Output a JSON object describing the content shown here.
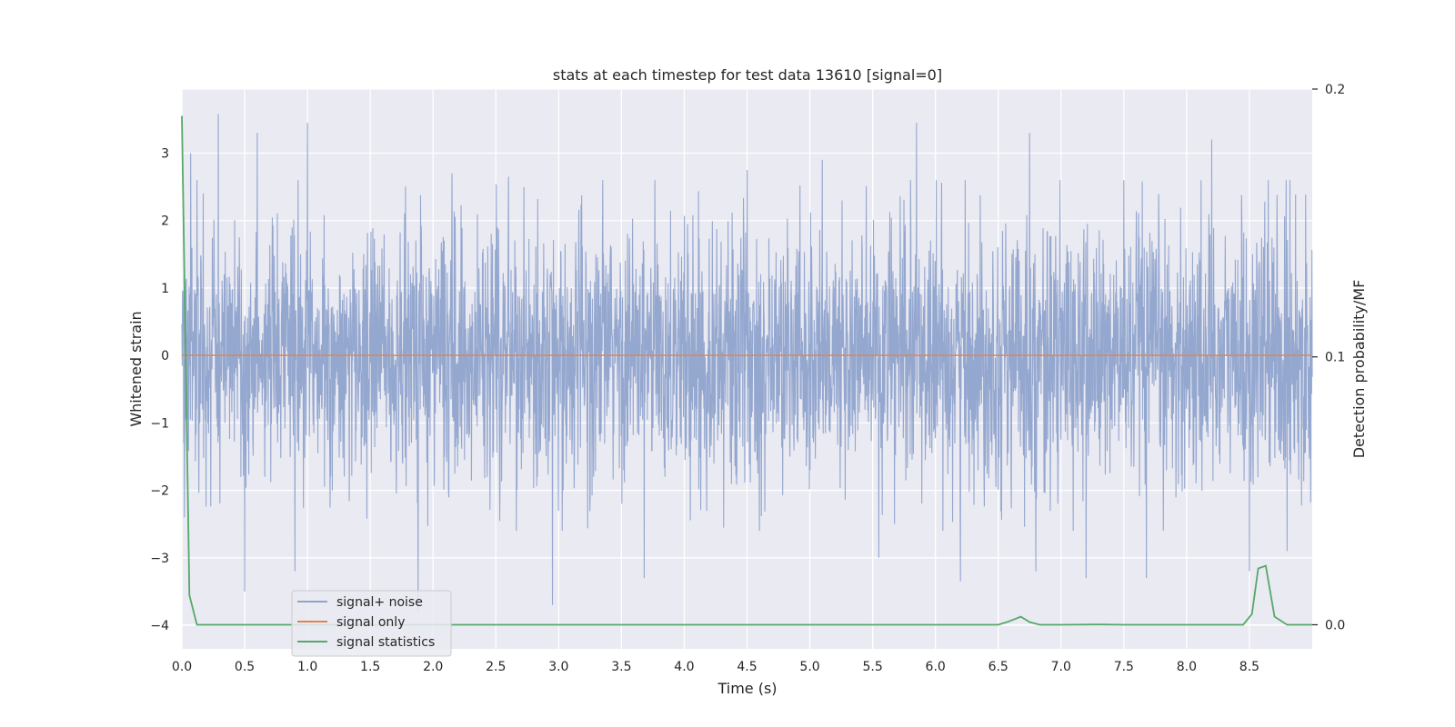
{
  "chart_data": {
    "type": "line",
    "title": "stats at each timestep for test data 13610 [signal=0]",
    "xlabel": "Time (s)",
    "ylabel": "Whitened strain",
    "y2label": "Detection probability/MF",
    "xlim": [
      0.0,
      9.0
    ],
    "ylim": [
      -4.35,
      3.95
    ],
    "y2lim": [
      -0.009,
      0.2
    ],
    "x_ticks": [
      "0.0",
      "0.5",
      "1.0",
      "1.5",
      "2.0",
      "2.5",
      "3.0",
      "3.5",
      "4.0",
      "4.5",
      "5.0",
      "5.5",
      "6.0",
      "6.5",
      "7.0",
      "7.5",
      "8.0",
      "8.5"
    ],
    "y_ticks": [
      "3",
      "2",
      "1",
      "0",
      "−1",
      "−2",
      "−3",
      "−4"
    ],
    "y2_ticks": [
      "0.2",
      "0.1",
      "0.0"
    ],
    "grid": true,
    "legend_position": "lower-left",
    "colors": {
      "noise": "#8fa3cc",
      "signal": "#dd8452",
      "stats": "#55a868",
      "background": "#eaeaf2"
    },
    "series": [
      {
        "name": "signal+ noise",
        "axis": "left",
        "description_samples": "noisy whitened strain, roughly ±2.5 with peaks to ±3.5",
        "peaks_max": [
          [
            0.07,
            3.0
          ],
          [
            0.29,
            3.58
          ],
          [
            0.6,
            3.3
          ],
          [
            1.0,
            3.45
          ],
          [
            2.15,
            2.7
          ],
          [
            2.6,
            2.65
          ],
          [
            3.35,
            2.6
          ],
          [
            4.5,
            2.75
          ],
          [
            5.1,
            2.9
          ],
          [
            5.85,
            3.45
          ],
          [
            6.75,
            3.3
          ],
          [
            7.5,
            2.6
          ],
          [
            8.2,
            3.2
          ],
          [
            8.65,
            2.6
          ]
        ],
        "peaks_min": [
          [
            0.02,
            -2.4
          ],
          [
            0.5,
            -3.5
          ],
          [
            0.9,
            -3.2
          ],
          [
            1.88,
            -3.8
          ],
          [
            2.95,
            -3.7
          ],
          [
            3.68,
            -3.3
          ],
          [
            5.55,
            -3.0
          ],
          [
            6.2,
            -3.35
          ],
          [
            6.8,
            -3.2
          ],
          [
            7.2,
            -3.3
          ],
          [
            7.68,
            -3.3
          ],
          [
            8.5,
            -3.2
          ],
          [
            8.8,
            -2.9
          ]
        ]
      },
      {
        "name": "signal only",
        "axis": "left",
        "x": [
          0.0,
          9.0
        ],
        "y": [
          0.0,
          0.0
        ]
      },
      {
        "name": "signal statistics",
        "axis": "right",
        "x": [
          0.0,
          0.06,
          0.12,
          0.25,
          1.0,
          2.0,
          3.0,
          4.0,
          5.0,
          6.0,
          6.5,
          6.57,
          6.68,
          6.75,
          6.83,
          7.0,
          7.3,
          7.5,
          8.0,
          8.45,
          8.52,
          8.57,
          8.63,
          8.7,
          8.8,
          9.0
        ],
        "y": [
          0.19,
          0.011,
          0.0,
          0.0,
          0.0,
          0.0,
          0.0,
          0.0,
          0.0,
          0.0,
          0.0,
          0.001,
          0.003,
          0.001,
          0.0,
          0.0,
          0.0001,
          0.0,
          0.0,
          0.0,
          0.004,
          0.021,
          0.022,
          0.003,
          0.0,
          0.0
        ]
      }
    ]
  }
}
